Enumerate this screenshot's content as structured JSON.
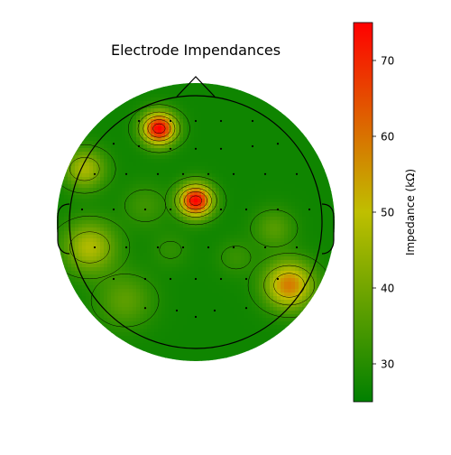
{
  "chart_data": {
    "type": "heatmap",
    "subtype": "topographic-scalp-map",
    "title": "Electrode Impendances",
    "colorbar": {
      "label": "Impedance (kΩ)",
      "range": [
        25,
        75
      ],
      "ticks": [
        30,
        40,
        50,
        60,
        70
      ],
      "colors": [
        "#008000",
        "#bfbf00",
        "#ff0000"
      ]
    },
    "head_radius": 1.0,
    "peaks": [
      {
        "x": -0.29,
        "y": 0.74,
        "value": 75,
        "sigma": 0.09
      },
      {
        "x": 0.0,
        "y": 0.17,
        "value": 75,
        "sigma": 0.09
      },
      {
        "x": -0.88,
        "y": 0.42,
        "value": 47,
        "sigma": 0.11
      },
      {
        "x": -0.84,
        "y": -0.2,
        "value": 48,
        "sigma": 0.14
      },
      {
        "x": 0.74,
        "y": -0.5,
        "value": 59,
        "sigma": 0.13
      },
      {
        "x": -0.56,
        "y": -0.62,
        "value": 37,
        "sigma": 0.15
      },
      {
        "x": -0.4,
        "y": 0.13,
        "value": 33,
        "sigma": 0.12
      },
      {
        "x": 0.62,
        "y": -0.05,
        "value": 36,
        "sigma": 0.11
      },
      {
        "x": 0.32,
        "y": -0.28,
        "value": 32,
        "sigma": 0.1
      },
      {
        "x": -0.2,
        "y": -0.22,
        "value": 31,
        "sigma": 0.1
      }
    ],
    "baseline": 27,
    "electrodes": [
      [
        -0.45,
        0.8
      ],
      [
        -0.2,
        0.8
      ],
      [
        0.0,
        0.8
      ],
      [
        0.2,
        0.8
      ],
      [
        0.45,
        0.8
      ],
      [
        -0.65,
        0.62
      ],
      [
        -0.45,
        0.6
      ],
      [
        -0.2,
        0.58
      ],
      [
        0.0,
        0.58
      ],
      [
        0.2,
        0.58
      ],
      [
        0.45,
        0.6
      ],
      [
        0.65,
        0.62
      ],
      [
        -0.8,
        0.38
      ],
      [
        -0.55,
        0.38
      ],
      [
        -0.3,
        0.38
      ],
      [
        -0.1,
        0.38
      ],
      [
        0.1,
        0.38
      ],
      [
        0.3,
        0.38
      ],
      [
        0.55,
        0.38
      ],
      [
        0.8,
        0.38
      ],
      [
        -0.9,
        0.1
      ],
      [
        -0.65,
        0.1
      ],
      [
        -0.4,
        0.1
      ],
      [
        -0.2,
        0.1
      ],
      [
        0.2,
        0.1
      ],
      [
        0.4,
        0.1
      ],
      [
        0.65,
        0.1
      ],
      [
        0.9,
        0.1
      ],
      [
        -0.8,
        -0.2
      ],
      [
        -0.55,
        -0.2
      ],
      [
        -0.3,
        -0.2
      ],
      [
        -0.1,
        -0.2
      ],
      [
        0.1,
        -0.2
      ],
      [
        0.3,
        -0.2
      ],
      [
        0.55,
        -0.2
      ],
      [
        0.8,
        -0.2
      ],
      [
        -0.65,
        -0.45
      ],
      [
        -0.4,
        -0.45
      ],
      [
        -0.2,
        -0.45
      ],
      [
        0.0,
        -0.45
      ],
      [
        0.2,
        -0.45
      ],
      [
        0.4,
        -0.45
      ],
      [
        0.65,
        -0.45
      ],
      [
        -0.4,
        -0.68
      ],
      [
        -0.15,
        -0.7
      ],
      [
        0.0,
        -0.75
      ],
      [
        0.15,
        -0.7
      ],
      [
        0.4,
        -0.68
      ]
    ]
  }
}
